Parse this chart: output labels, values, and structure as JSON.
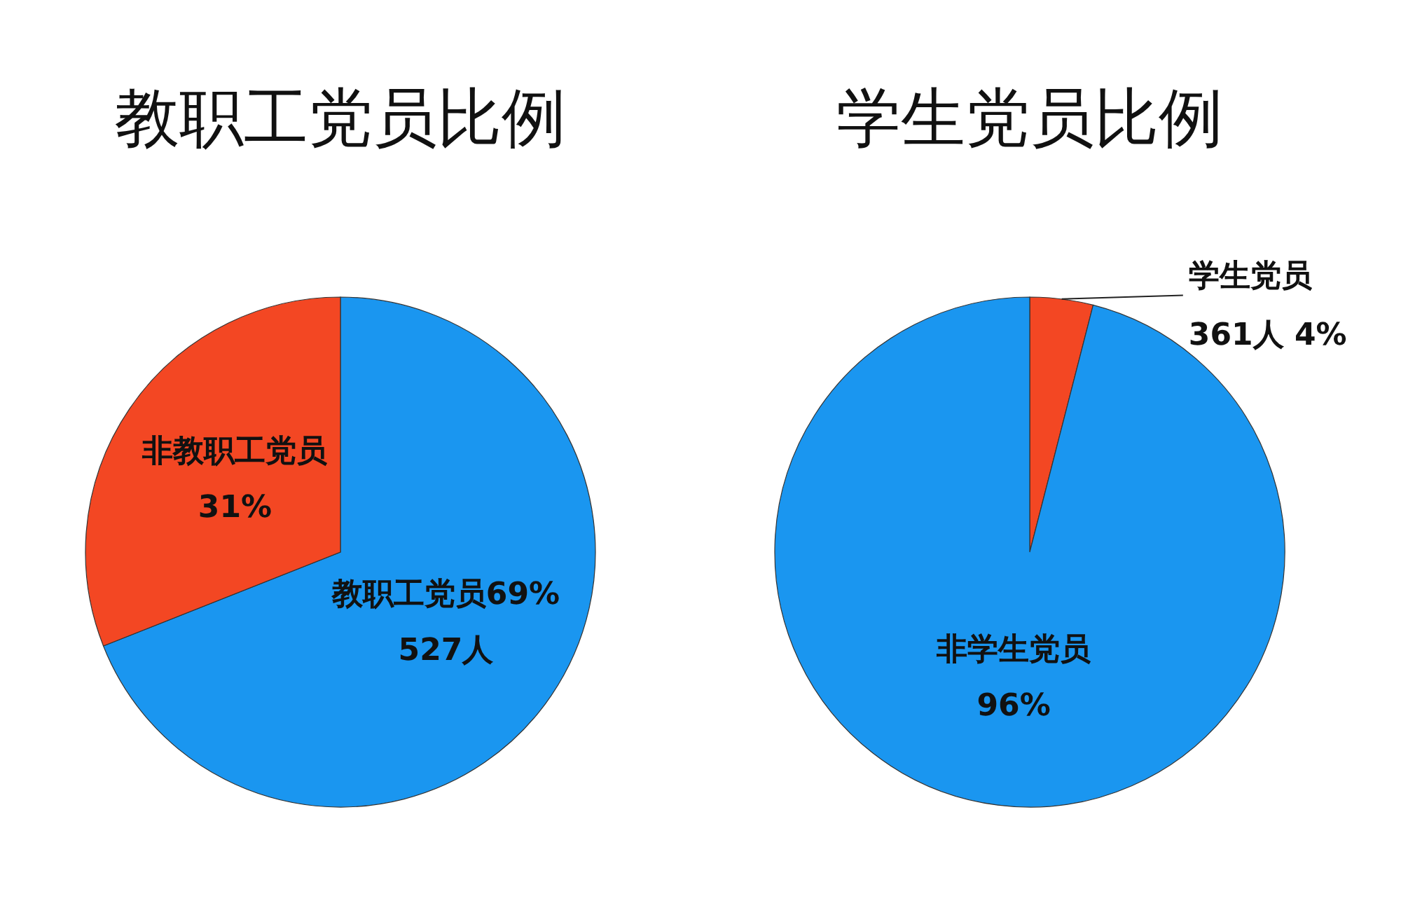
{
  "chart_data": [
    {
      "type": "pie",
      "title": "教职工党员比例",
      "categories": [
        "教职工党员",
        "非教职工党员"
      ],
      "values": [
        69,
        31
      ],
      "colors": [
        "#1a96f0",
        "#f34723"
      ],
      "value_labels": [
        "69%\n527人",
        "\n31%"
      ]
    },
    {
      "type": "pie",
      "title": "学生党员比例",
      "categories": [
        "学生党员",
        "非学生党员"
      ],
      "values": [
        4,
        96
      ],
      "colors": [
        "#f34723",
        "#1a96f0"
      ],
      "value_labels": [
        "\n361人 4%",
        "\n96%"
      ]
    }
  ]
}
